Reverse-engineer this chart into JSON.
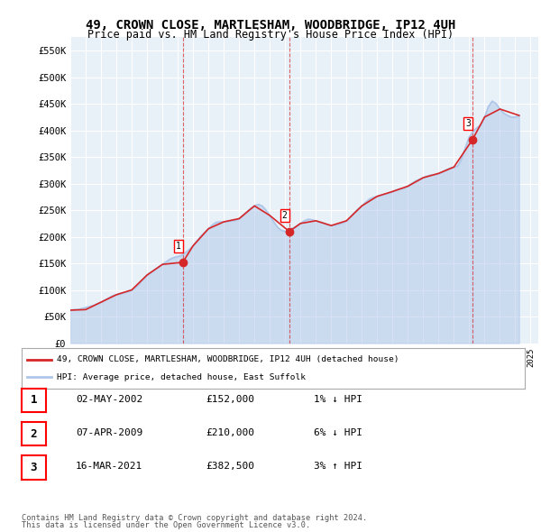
{
  "title": "49, CROWN CLOSE, MARTLESHAM, WOODBRIDGE, IP12 4UH",
  "subtitle": "Price paid vs. HM Land Registry's House Price Index (HPI)",
  "ylabel": "",
  "hpi_color": "#aec6e8",
  "price_color": "#d62728",
  "background_color": "#ffffff",
  "plot_bg_color": "#e8f0f8",
  "grid_color": "#ffffff",
  "ylim": [
    0,
    575000
  ],
  "yticks": [
    0,
    50000,
    100000,
    150000,
    200000,
    250000,
    300000,
    350000,
    400000,
    450000,
    500000,
    550000
  ],
  "ytick_labels": [
    "£0",
    "£50K",
    "£100K",
    "£150K",
    "£200K",
    "£250K",
    "£300K",
    "£350K",
    "£400K",
    "£450K",
    "£500K",
    "£550K"
  ],
  "sales": [
    {
      "num": 1,
      "date": "02-MAY-2002",
      "price": 152000,
      "hpi_diff": "1% ↓ HPI",
      "year": 2002.33
    },
    {
      "num": 2,
      "date": "07-APR-2009",
      "price": 210000,
      "hpi_diff": "6% ↓ HPI",
      "year": 2009.27
    },
    {
      "num": 3,
      "date": "16-MAR-2021",
      "price": 382500,
      "hpi_diff": "3% ↑ HPI",
      "year": 2021.21
    }
  ],
  "legend_entries": [
    "49, CROWN CLOSE, MARTLESHAM, WOODBRIDGE, IP12 4UH (detached house)",
    "HPI: Average price, detached house, East Suffolk"
  ],
  "footer": [
    "Contains HM Land Registry data © Crown copyright and database right 2024.",
    "This data is licensed under the Open Government Licence v3.0."
  ],
  "hpi_data_x": [
    1995.0,
    1995.25,
    1995.5,
    1995.75,
    1996.0,
    1996.25,
    1996.5,
    1996.75,
    1997.0,
    1997.25,
    1997.5,
    1997.75,
    1998.0,
    1998.25,
    1998.5,
    1998.75,
    1999.0,
    1999.25,
    1999.5,
    1999.75,
    2000.0,
    2000.25,
    2000.5,
    2000.75,
    2001.0,
    2001.25,
    2001.5,
    2001.75,
    2002.0,
    2002.25,
    2002.5,
    2002.75,
    2003.0,
    2003.25,
    2003.5,
    2003.75,
    2004.0,
    2004.25,
    2004.5,
    2004.75,
    2005.0,
    2005.25,
    2005.5,
    2005.75,
    2006.0,
    2006.25,
    2006.5,
    2006.75,
    2007.0,
    2007.25,
    2007.5,
    2007.75,
    2008.0,
    2008.25,
    2008.5,
    2008.75,
    2009.0,
    2009.25,
    2009.5,
    2009.75,
    2010.0,
    2010.25,
    2010.5,
    2010.75,
    2011.0,
    2011.25,
    2011.5,
    2011.75,
    2012.0,
    2012.25,
    2012.5,
    2012.75,
    2013.0,
    2013.25,
    2013.5,
    2013.75,
    2014.0,
    2014.25,
    2014.5,
    2014.75,
    2015.0,
    2015.25,
    2015.5,
    2015.75,
    2016.0,
    2016.25,
    2016.5,
    2016.75,
    2017.0,
    2017.25,
    2017.5,
    2017.75,
    2018.0,
    2018.25,
    2018.5,
    2018.75,
    2019.0,
    2019.25,
    2019.5,
    2019.75,
    2020.0,
    2020.25,
    2020.5,
    2020.75,
    2021.0,
    2021.25,
    2021.5,
    2021.75,
    2022.0,
    2022.25,
    2022.5,
    2022.75,
    2023.0,
    2023.25,
    2023.5,
    2023.75,
    2024.0,
    2024.25
  ],
  "hpi_data_y": [
    62000,
    63000,
    63500,
    65000,
    67000,
    69000,
    71000,
    74000,
    77000,
    81000,
    85000,
    89000,
    91000,
    93000,
    95000,
    97000,
    100000,
    105000,
    112000,
    120000,
    128000,
    133000,
    138000,
    143000,
    148000,
    153000,
    158000,
    161000,
    163000,
    165000,
    170000,
    176000,
    183000,
    192000,
    201000,
    208000,
    215000,
    222000,
    227000,
    228000,
    228000,
    229000,
    230000,
    231000,
    234000,
    240000,
    247000,
    253000,
    258000,
    261000,
    258000,
    250000,
    240000,
    228000,
    218000,
    212000,
    210000,
    213000,
    216000,
    220000,
    225000,
    230000,
    233000,
    232000,
    230000,
    228000,
    226000,
    223000,
    221000,
    222000,
    224000,
    226000,
    230000,
    237000,
    245000,
    252000,
    258000,
    265000,
    271000,
    274000,
    276000,
    278000,
    280000,
    282000,
    285000,
    288000,
    290000,
    291000,
    295000,
    300000,
    305000,
    308000,
    311000,
    314000,
    316000,
    317000,
    319000,
    322000,
    326000,
    329000,
    331000,
    333000,
    347000,
    368000,
    388000,
    398000,
    405000,
    410000,
    425000,
    445000,
    455000,
    450000,
    440000,
    432000,
    428000,
    425000,
    425000,
    428000
  ],
  "price_line_x": [
    1995.0,
    1996.0,
    1997.0,
    1998.0,
    1999.0,
    2000.0,
    2001.0,
    2002.33,
    2002.33,
    2003.0,
    2004.0,
    2005.0,
    2006.0,
    2007.0,
    2008.0,
    2009.27,
    2009.27,
    2010.0,
    2011.0,
    2012.0,
    2013.0,
    2014.0,
    2015.0,
    2016.0,
    2017.0,
    2018.0,
    2019.0,
    2020.0,
    2021.21,
    2021.21,
    2022.0,
    2023.0,
    2024.25
  ],
  "price_line_y": [
    62000,
    63000,
    77000,
    91000,
    100000,
    128000,
    148000,
    152000,
    152000,
    183000,
    215000,
    228000,
    234000,
    258000,
    240000,
    210000,
    210000,
    225000,
    230000,
    221000,
    230000,
    258000,
    276000,
    285000,
    295000,
    311000,
    319000,
    331000,
    382500,
    382500,
    425000,
    440000,
    428000
  ]
}
